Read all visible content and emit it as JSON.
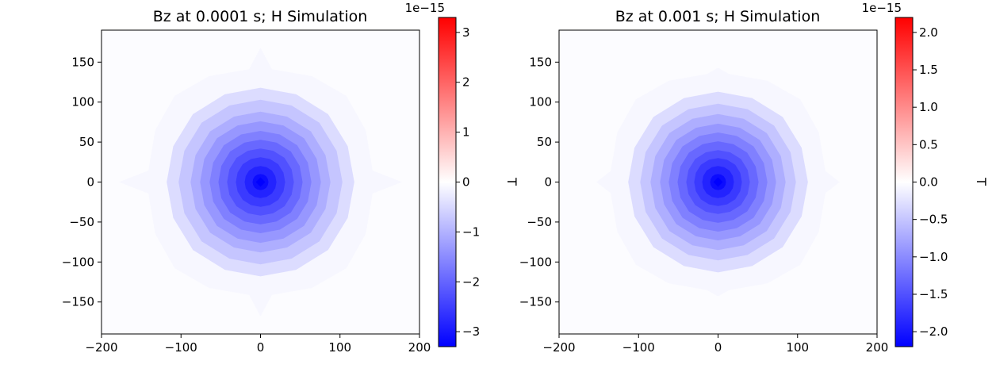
{
  "chart_data": [
    {
      "type": "contourf",
      "title": "Bz at 0.0001 s; H Simulation",
      "xlim": [
        -200,
        200
      ],
      "ylim": [
        -190,
        190
      ],
      "x_ticks": [
        "−200",
        "−100",
        "0",
        "100",
        "200"
      ],
      "x_tick_values": [
        -200,
        -100,
        0,
        100,
        200
      ],
      "y_ticks": [
        "150",
        "100",
        "50",
        "0",
        "−50",
        "−100",
        "−150"
      ],
      "y_tick_values": [
        150,
        100,
        50,
        0,
        -50,
        -100,
        -150
      ],
      "colormap": "bwr",
      "colors": {
        "min": "#0000ff",
        "mid": "#ffffff",
        "max": "#ff0000"
      },
      "colorbar": {
        "label": "T",
        "offset_text": "1e−15",
        "range": [
          -3.3,
          3.3
        ],
        "ticks": [
          "3",
          "2",
          "1",
          "0",
          "−1",
          "−2",
          "−3"
        ],
        "tick_values": [
          3,
          2,
          1,
          0,
          -1,
          -2,
          -3
        ]
      },
      "peak_value": -3.3,
      "contours": [
        {
          "level": -0.11,
          "extent": [
            178,
            168,
            178,
            168
          ]
        },
        {
          "level": -0.45,
          "extent": [
            118,
            118,
            118,
            118
          ]
        },
        {
          "level": -0.75,
          "extent": [
            103,
            103,
            103,
            103
          ]
        },
        {
          "level": -1.05,
          "extent": [
            88,
            88,
            88,
            88
          ]
        },
        {
          "level": -1.35,
          "extent": [
            76,
            76,
            76,
            76
          ]
        },
        {
          "level": -1.65,
          "extent": [
            64,
            64,
            64,
            64
          ]
        },
        {
          "level": -1.95,
          "extent": [
            53,
            53,
            53,
            53
          ]
        },
        {
          "level": -2.25,
          "extent": [
            42,
            42,
            42,
            42
          ]
        },
        {
          "level": -2.55,
          "extent": [
            31,
            31,
            31,
            31
          ]
        },
        {
          "level": -2.85,
          "extent": [
            20,
            20,
            20,
            20
          ]
        },
        {
          "level": -3.15,
          "extent": [
            10,
            10,
            10,
            10
          ]
        }
      ]
    },
    {
      "type": "contourf",
      "title": "Bz at 0.001 s; H Simulation",
      "xlim": [
        -200,
        200
      ],
      "ylim": [
        -190,
        190
      ],
      "x_ticks": [
        "−200",
        "−100",
        "0",
        "100",
        "200"
      ],
      "x_tick_values": [
        -200,
        -100,
        0,
        100,
        200
      ],
      "y_ticks": [
        "150",
        "100",
        "50",
        "0",
        "−50",
        "−100",
        "−150"
      ],
      "y_tick_values": [
        150,
        100,
        50,
        0,
        -50,
        -100,
        -150
      ],
      "colormap": "bwr",
      "colors": {
        "min": "#0000ff",
        "mid": "#ffffff",
        "max": "#ff0000"
      },
      "colorbar": {
        "label": "T",
        "offset_text": "1e−15",
        "range": [
          -2.2,
          2.2
        ],
        "ticks": [
          "2.0",
          "1.5",
          "1.0",
          "0.5",
          "0.0",
          "−0.5",
          "−1.0",
          "−1.5",
          "−2.0"
        ],
        "tick_values": [
          2.0,
          1.5,
          1.0,
          0.5,
          0.0,
          -0.5,
          -1.0,
          -1.5,
          -2.0
        ]
      },
      "peak_value": -2.2,
      "contours": [
        {
          "level": -0.07,
          "extent": [
            153,
            143,
            153,
            143
          ]
        },
        {
          "level": -0.3,
          "extent": [
            113,
            113,
            113,
            113
          ]
        },
        {
          "level": -0.5,
          "extent": [
            98,
            98,
            98,
            98
          ]
        },
        {
          "level": -0.7,
          "extent": [
            85,
            85,
            85,
            85
          ]
        },
        {
          "level": -0.9,
          "extent": [
            73,
            73,
            73,
            73
          ]
        },
        {
          "level": -1.1,
          "extent": [
            62,
            62,
            62,
            62
          ]
        },
        {
          "level": -1.3,
          "extent": [
            51,
            51,
            51,
            51
          ]
        },
        {
          "level": -1.5,
          "extent": [
            40,
            40,
            40,
            40
          ]
        },
        {
          "level": -1.7,
          "extent": [
            30,
            30,
            30,
            30
          ]
        },
        {
          "level": -1.9,
          "extent": [
            20,
            20,
            20,
            20
          ]
        },
        {
          "level": -2.1,
          "extent": [
            10,
            10,
            10,
            10
          ]
        }
      ]
    }
  ]
}
